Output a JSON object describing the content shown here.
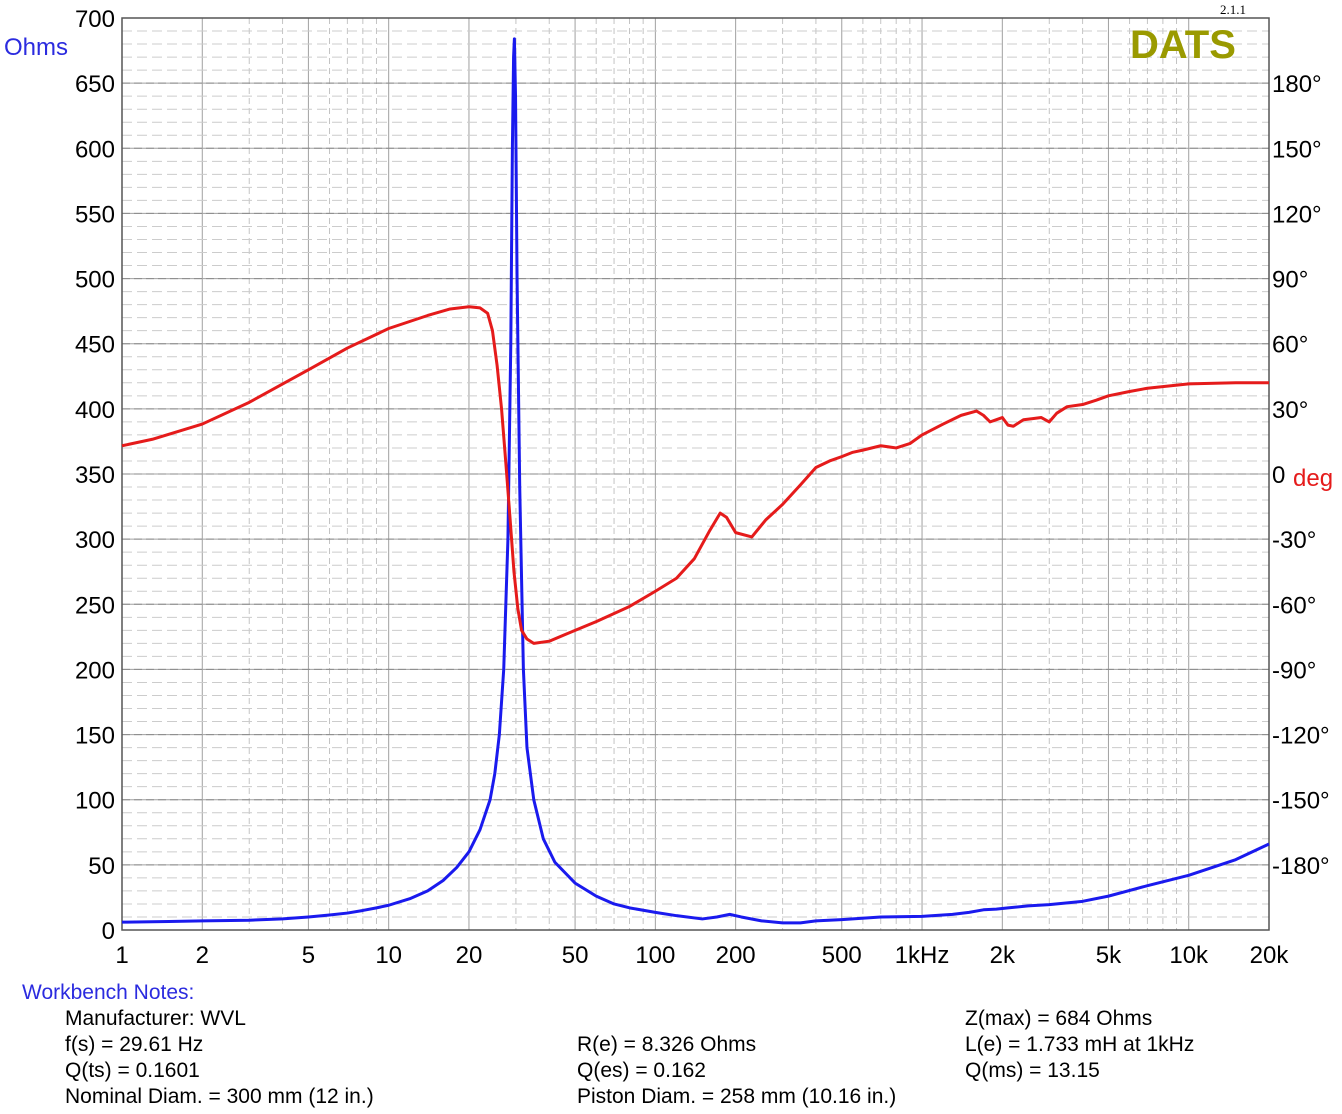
{
  "chart_data": {
    "type": "line",
    "version": "2.1.1",
    "brand": "DATS",
    "brand_color": "#9a9a00",
    "left_axis_label": "Ohms",
    "right_axis_label": "deg",
    "x_scale": "log",
    "xlim": [
      1,
      20000
    ],
    "ylim_left": [
      0,
      700
    ],
    "ylim_right": [
      -210,
      210
    ],
    "x_ticks": [
      {
        "value": 1,
        "label": "1"
      },
      {
        "value": 2,
        "label": "2"
      },
      {
        "value": 5,
        "label": "5"
      },
      {
        "value": 10,
        "label": "10"
      },
      {
        "value": 20,
        "label": "20"
      },
      {
        "value": 50,
        "label": "50"
      },
      {
        "value": 100,
        "label": "100"
      },
      {
        "value": 200,
        "label": "200"
      },
      {
        "value": 500,
        "label": "500"
      },
      {
        "value": 1000,
        "label": "1kHz"
      },
      {
        "value": 2000,
        "label": "2k"
      },
      {
        "value": 5000,
        "label": "5k"
      },
      {
        "value": 10000,
        "label": "10k"
      },
      {
        "value": 20000,
        "label": "20k"
      }
    ],
    "y_left_ticks": [
      0,
      50,
      100,
      150,
      200,
      250,
      300,
      350,
      400,
      450,
      500,
      550,
      600,
      650,
      700
    ],
    "y_right_ticks": [
      {
        "value": 180,
        "label": "180°"
      },
      {
        "value": 150,
        "label": "150°"
      },
      {
        "value": 120,
        "label": "120°"
      },
      {
        "value": 90,
        "label": "90°"
      },
      {
        "value": 60,
        "label": "60°"
      },
      {
        "value": 30,
        "label": "30°"
      },
      {
        "value": 0,
        "label": "0"
      },
      {
        "value": -30,
        "label": "-30°"
      },
      {
        "value": -60,
        "label": "-60°"
      },
      {
        "value": -90,
        "label": "-90°"
      },
      {
        "value": -120,
        "label": "-120°"
      },
      {
        "value": -150,
        "label": "-150°"
      },
      {
        "value": -180,
        "label": "-180°"
      }
    ],
    "grid": true,
    "series": [
      {
        "axis": "left",
        "color": "#1a1aee",
        "points": [
          [
            1,
            6
          ],
          [
            1.5,
            6.5
          ],
          [
            2,
            7
          ],
          [
            3,
            7.5
          ],
          [
            4,
            8.5
          ],
          [
            5,
            10
          ],
          [
            6,
            11.5
          ],
          [
            7,
            13
          ],
          [
            8,
            15
          ],
          [
            9,
            17
          ],
          [
            10,
            19
          ],
          [
            12,
            24
          ],
          [
            14,
            30
          ],
          [
            16,
            38
          ],
          [
            18,
            48
          ],
          [
            20,
            60
          ],
          [
            22,
            77
          ],
          [
            24,
            100
          ],
          [
            25,
            120
          ],
          [
            26,
            150
          ],
          [
            27,
            200
          ],
          [
            28,
            300
          ],
          [
            28.7,
            450
          ],
          [
            29.1,
            600
          ],
          [
            29.4,
            670
          ],
          [
            29.61,
            684
          ],
          [
            29.9,
            640
          ],
          [
            30.3,
            500
          ],
          [
            31,
            340
          ],
          [
            32,
            200
          ],
          [
            33,
            140
          ],
          [
            35,
            100
          ],
          [
            38,
            70
          ],
          [
            42,
            52
          ],
          [
            50,
            36
          ],
          [
            60,
            26
          ],
          [
            70,
            20
          ],
          [
            80,
            17
          ],
          [
            100,
            13.5
          ],
          [
            120,
            11
          ],
          [
            150,
            8.5
          ],
          [
            170,
            10
          ],
          [
            190,
            12
          ],
          [
            210,
            10
          ],
          [
            250,
            7
          ],
          [
            300,
            5.5
          ],
          [
            350,
            5.5
          ],
          [
            400,
            7
          ],
          [
            500,
            8
          ],
          [
            700,
            10
          ],
          [
            1000,
            10.5
          ],
          [
            1300,
            12
          ],
          [
            1500,
            13.5
          ],
          [
            1700,
            15.5
          ],
          [
            1900,
            16
          ],
          [
            2100,
            17
          ],
          [
            2500,
            18.5
          ],
          [
            3000,
            19.5
          ],
          [
            4000,
            22
          ],
          [
            5000,
            26
          ],
          [
            7000,
            34
          ],
          [
            10000,
            42
          ],
          [
            15000,
            54
          ],
          [
            20000,
            66
          ]
        ]
      },
      {
        "axis": "right",
        "color": "#e51b1b",
        "points": [
          [
            1,
            13
          ],
          [
            1.3,
            16
          ],
          [
            2,
            23
          ],
          [
            3,
            33
          ],
          [
            5,
            48
          ],
          [
            7,
            58
          ],
          [
            10,
            67
          ],
          [
            14,
            73
          ],
          [
            17,
            76
          ],
          [
            20,
            77
          ],
          [
            22,
            76.5
          ],
          [
            23.5,
            74
          ],
          [
            24.5,
            66
          ],
          [
            25.5,
            50
          ],
          [
            26.5,
            30
          ],
          [
            27.5,
            5
          ],
          [
            28.5,
            -20
          ],
          [
            29.5,
            -45
          ],
          [
            30.5,
            -62
          ],
          [
            31.5,
            -72
          ],
          [
            33,
            -76
          ],
          [
            35,
            -78
          ],
          [
            40,
            -77
          ],
          [
            50,
            -72
          ],
          [
            60,
            -68
          ],
          [
            80,
            -61
          ],
          [
            100,
            -54
          ],
          [
            120,
            -48
          ],
          [
            140,
            -39
          ],
          [
            160,
            -26
          ],
          [
            175,
            -18
          ],
          [
            185,
            -20
          ],
          [
            200,
            -27
          ],
          [
            230,
            -29
          ],
          [
            260,
            -21
          ],
          [
            300,
            -14
          ],
          [
            350,
            -5
          ],
          [
            400,
            3
          ],
          [
            450,
            6
          ],
          [
            500,
            8
          ],
          [
            550,
            10
          ],
          [
            600,
            11
          ],
          [
            700,
            13
          ],
          [
            800,
            12
          ],
          [
            900,
            14
          ],
          [
            1000,
            18
          ],
          [
            1200,
            23
          ],
          [
            1400,
            27
          ],
          [
            1600,
            29
          ],
          [
            1700,
            27
          ],
          [
            1800,
            24
          ],
          [
            1900,
            25
          ],
          [
            2000,
            26
          ],
          [
            2100,
            22.5
          ],
          [
            2200,
            22
          ],
          [
            2400,
            25
          ],
          [
            2600,
            25.5
          ],
          [
            2800,
            26
          ],
          [
            3000,
            24
          ],
          [
            3200,
            28
          ],
          [
            3500,
            31
          ],
          [
            4000,
            32
          ],
          [
            4500,
            34
          ],
          [
            5000,
            36
          ],
          [
            6000,
            38
          ],
          [
            7000,
            39.5
          ],
          [
            10000,
            41.5
          ],
          [
            15000,
            42
          ],
          [
            20000,
            42
          ]
        ]
      }
    ]
  },
  "notes": {
    "title": "Workbench Notes:",
    "manufacturer": "Manufacturer: WVL",
    "fs": "f(s) = 29.61 Hz",
    "qts": "Q(ts) = 0.1601",
    "nominal_diam": "Nominal Diam. = 300 mm (12 in.)",
    "re": "R(e) = 8.326 Ohms",
    "qes": "Q(es) = 0.162",
    "piston_diam": "Piston Diam. = 258 mm (10.16 in.)",
    "zmax": "Z(max) = 684 Ohms",
    "le": "L(e) = 1.733 mH at 1kHz",
    "qms": "Q(ms) = 13.15"
  }
}
